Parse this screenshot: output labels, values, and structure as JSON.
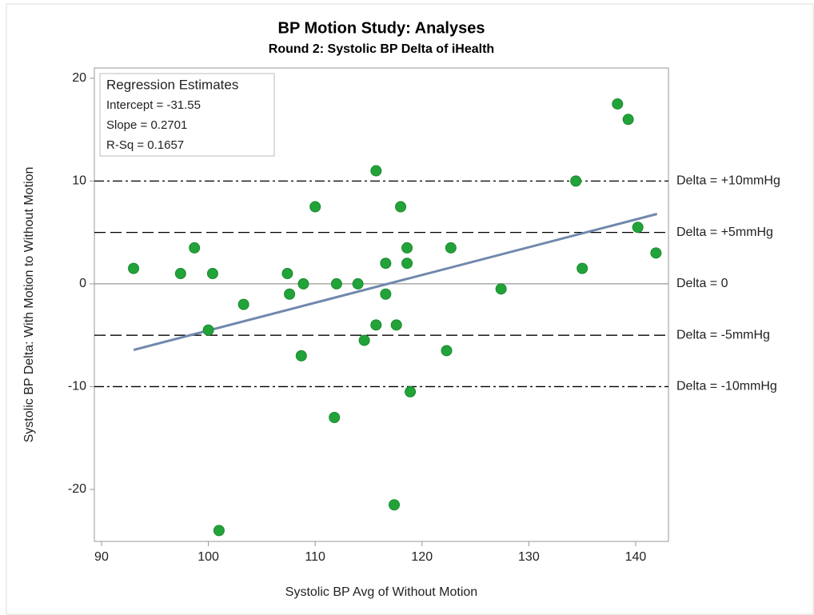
{
  "chart_data": {
    "type": "scatter",
    "title": "BP Motion Study: Analyses",
    "subtitle": "Round 2: Systolic BP Delta of iHealth",
    "x_label": "Systolic BP Avg of Without Motion",
    "y_label": "Systolic BP Delta: With Motion to Without Motion",
    "xlim": [
      89.33,
      143.07
    ],
    "ylim": [
      -25.06,
      21.0
    ],
    "xticks": [
      90,
      100,
      110,
      120,
      130,
      140
    ],
    "yticks": [
      -20,
      -10,
      0,
      10,
      20
    ],
    "series": [
      {
        "color": "#22a33a",
        "x": [
          93,
          97.4,
          98.7,
          100,
          100.4,
          101,
          103.3,
          107.4,
          107.6,
          108.7,
          108.9,
          110,
          111.8,
          112,
          114,
          114.6,
          115.7,
          115.7,
          116.6,
          116.6,
          117.4,
          117.6,
          118,
          118.6,
          118.6,
          118.9,
          122.3,
          122.7,
          127.4,
          134.4,
          135,
          138.3,
          139.3,
          140.2,
          141.9
        ],
        "values": [
          1.5,
          1,
          3.5,
          -4.5,
          1,
          -24,
          -2,
          1,
          -1,
          -7,
          0,
          7.5,
          -13,
          0,
          0,
          -5.5,
          11,
          -4,
          2,
          -1,
          -21.5,
          -4,
          7.5,
          3.5,
          2,
          -10.5,
          -6.5,
          3.5,
          -0.5,
          10,
          1.5,
          17.5,
          16,
          5.5,
          3
        ]
      }
    ],
    "fit": {
      "color": "#7088ad",
      "x": [
        93,
        142
      ],
      "values": [
        -6.43,
        6.8
      ]
    },
    "reference_lines": [
      {
        "value": 10,
        "label": "Delta = +10mmHg",
        "style": "dashdot"
      },
      {
        "value": 5,
        "label": "Delta = +5mmHg",
        "style": "dashed"
      },
      {
        "value": 0,
        "label": "Delta = 0",
        "style": "solid"
      },
      {
        "value": -5,
        "label": "Delta = -5mmHg",
        "style": "dashed"
      },
      {
        "value": -10,
        "label": "Delta = -10mmHg",
        "style": "dashdot"
      }
    ],
    "inset": {
      "title": "Regression Estimates",
      "rows": [
        "Intercept = -31.55",
        "Slope = 0.2701",
        "R-Sq = 0.1657"
      ]
    }
  }
}
